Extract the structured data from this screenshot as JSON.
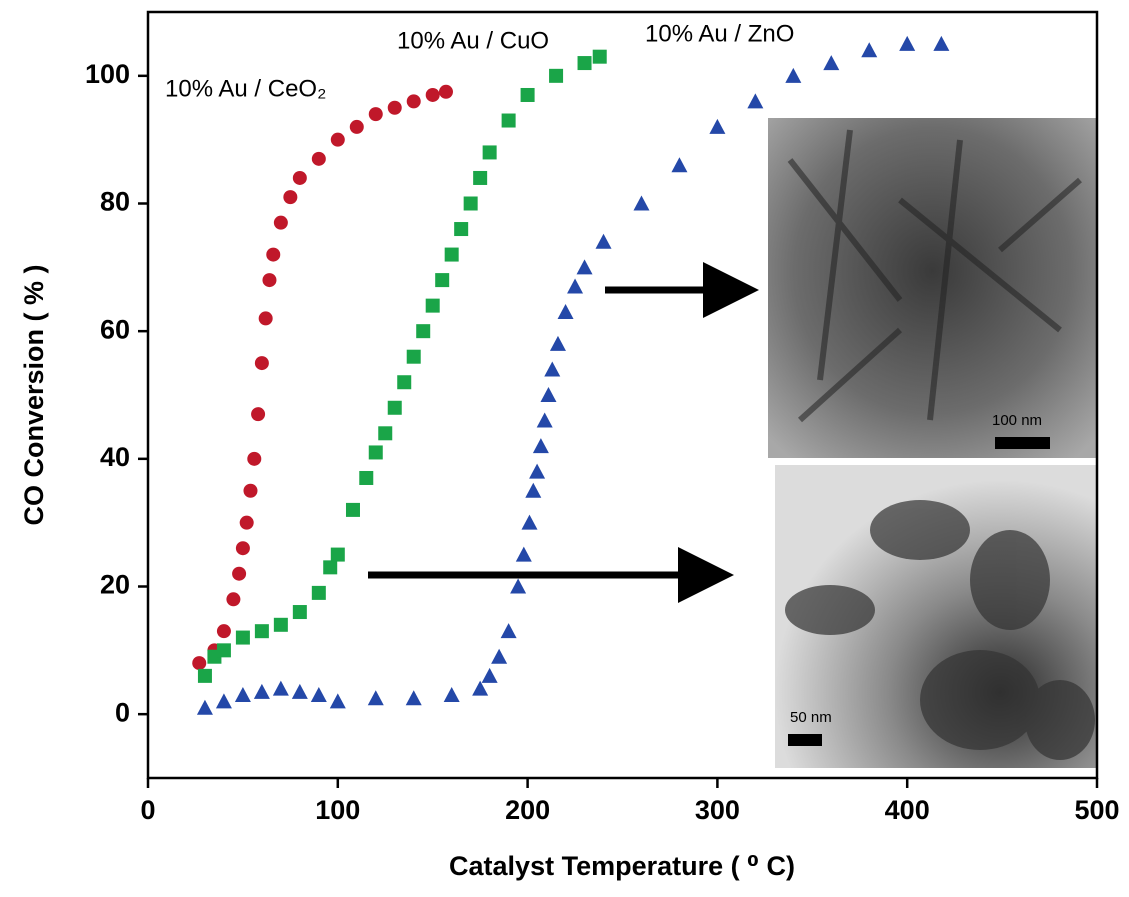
{
  "chart_data": {
    "type": "scatter",
    "xlabel": "Catalyst Temperature ( ⁰ C)",
    "ylabel": "CO Conversion ( % )",
    "xlim": [
      0,
      500
    ],
    "xticks": [
      0,
      100,
      200,
      300,
      400,
      500
    ],
    "ylim": [
      -10,
      110
    ],
    "yticks": [
      0,
      20,
      40,
      60,
      80,
      100
    ],
    "series": [
      {
        "name": "10% Au / CeO₂",
        "color": "#c0182a",
        "marker": "circle",
        "x": [
          27,
          35,
          40,
          45,
          48,
          50,
          52,
          54,
          56,
          58,
          60,
          62,
          64,
          66,
          70,
          75,
          80,
          90,
          100,
          110,
          120,
          130,
          140,
          150,
          157
        ],
        "values": [
          8,
          10,
          13,
          18,
          22,
          26,
          30,
          35,
          40,
          47,
          55,
          62,
          68,
          72,
          77,
          81,
          84,
          87,
          90,
          92,
          94,
          95,
          96,
          97,
          97.5
        ]
      },
      {
        "name": "10% Au / CuO",
        "color": "#1aa548",
        "marker": "square",
        "x": [
          30,
          35,
          40,
          50,
          60,
          70,
          80,
          90,
          96,
          100,
          108,
          115,
          120,
          125,
          130,
          135,
          140,
          145,
          150,
          155,
          160,
          165,
          170,
          175,
          180,
          190,
          200,
          215,
          230,
          238
        ],
        "values": [
          6,
          9,
          10,
          12,
          13,
          14,
          16,
          19,
          23,
          25,
          32,
          37,
          41,
          44,
          48,
          52,
          56,
          60,
          64,
          68,
          72,
          76,
          80,
          84,
          88,
          93,
          97,
          100,
          102,
          103
        ]
      },
      {
        "name": "10% Au / ZnO",
        "color": "#2448a8",
        "marker": "triangle",
        "x": [
          30,
          40,
          50,
          60,
          70,
          80,
          90,
          100,
          120,
          140,
          160,
          175,
          180,
          185,
          190,
          195,
          198,
          201,
          203,
          205,
          207,
          209,
          211,
          213,
          216,
          220,
          225,
          230,
          240,
          260,
          280,
          300,
          320,
          340,
          360,
          380,
          400,
          418
        ],
        "values": [
          1,
          2,
          3,
          3.5,
          4,
          3.5,
          3,
          2,
          2.5,
          2.5,
          3,
          4,
          6,
          9,
          13,
          20,
          25,
          30,
          35,
          38,
          42,
          46,
          50,
          54,
          58,
          63,
          67,
          70,
          74,
          80,
          86,
          92,
          96,
          100,
          102,
          104,
          105,
          105
        ]
      }
    ]
  },
  "insets": [
    {
      "scale_label": "100 nm"
    },
    {
      "scale_label": "50 nm"
    }
  ]
}
